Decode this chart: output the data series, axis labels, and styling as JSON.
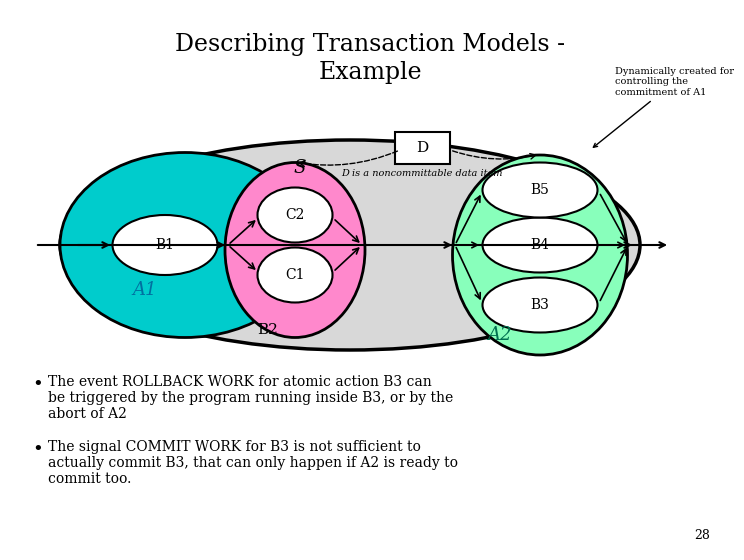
{
  "title_line1": "Describing Transaction Models -",
  "title_line2": "Example",
  "title_fontsize": 18,
  "bg_color": "#ffffff",
  "bullet1": "The event ROLLBACK WORK for atomic action B3 can\nbe triggered by the program running inside B3, or by the\nabort of A2",
  "bullet2": "The signal COMMIT WORK for B3 is not sufficient to\nactually commit B3, that can only happen if A2 is ready to\ncommit too.",
  "page_num": "28",
  "annotation": "Dynamically created for\ncontrolling the\ncommitment of A1",
  "d_label": "D",
  "d_note": "D is a noncommittable data item"
}
